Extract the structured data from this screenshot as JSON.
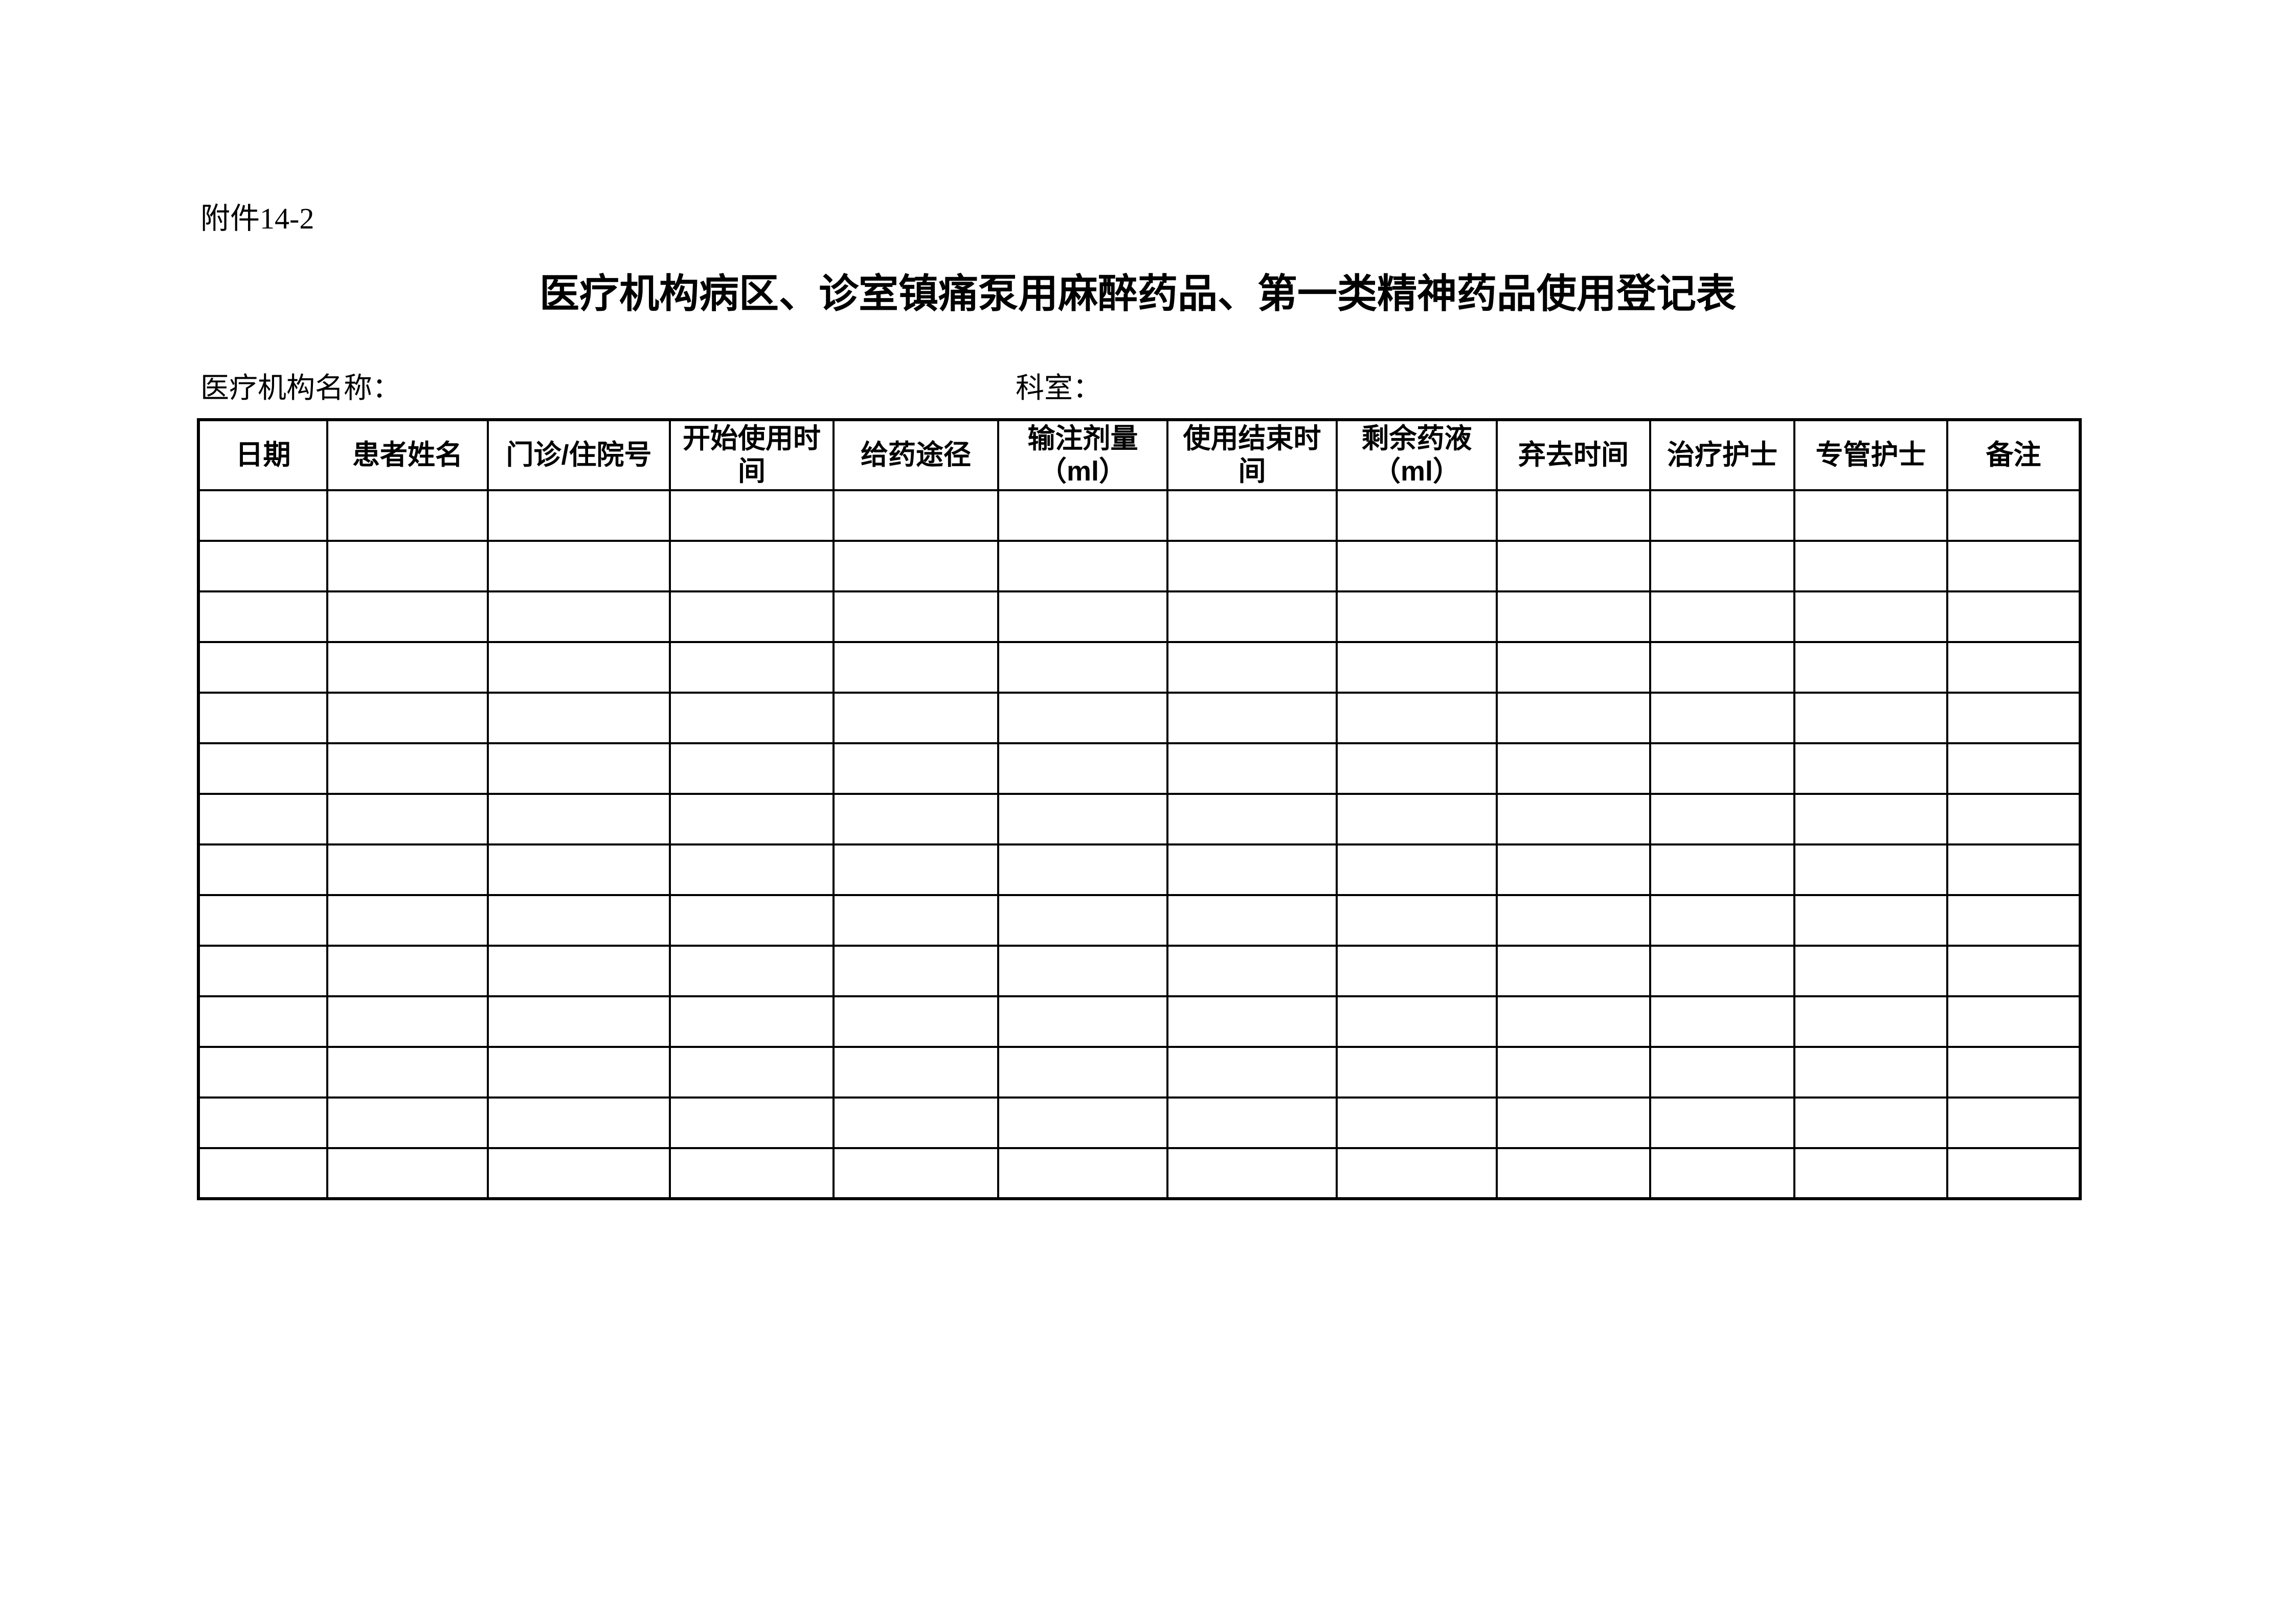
{
  "page": {
    "attachment_label": "附件14-2",
    "title": "医疗机构病区、诊室镇痛泵用麻醉药品、第一类精神药品使用登记表",
    "institution_label": "医疗机构名称：",
    "department_label": "科室："
  },
  "table": {
    "columns": [
      {
        "label": "日期"
      },
      {
        "label": "患者姓名"
      },
      {
        "label": "门诊/住院号"
      },
      {
        "label": "开始使用时\n间"
      },
      {
        "label": "给药途径"
      },
      {
        "label": "输注剂量\n（ml）"
      },
      {
        "label": "使用结束时\n间"
      },
      {
        "label": "剩余药液\n（ml）"
      },
      {
        "label": "弃去时间"
      },
      {
        "label": "治疗护士"
      },
      {
        "label": "专管护士"
      },
      {
        "label": "备注"
      }
    ],
    "empty_rows": 14
  },
  "colors": {
    "background": "#ffffff",
    "text": "#000000",
    "border": "#000000"
  }
}
